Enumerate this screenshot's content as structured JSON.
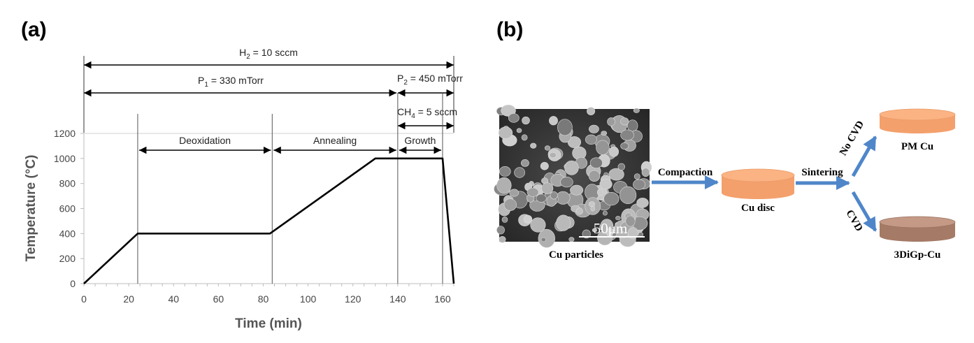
{
  "panel_a": {
    "label": "(a)",
    "h2_label": "H",
    "h2_sub": "2",
    "h2_value": " = 10 sccm",
    "p1_label": "P",
    "p1_sub": "1",
    "p1_value": " = 330 mTorr",
    "p2_label": "P",
    "p2_sub": "2",
    "p2_value": " = 450 mTorr",
    "ch4_label": "CH",
    "ch4_sub": "4",
    "ch4_value": " = 5 sccm",
    "stages": [
      "Deoxidation",
      "Annealing",
      "Growth"
    ]
  },
  "chart_data": {
    "type": "line",
    "xlabel": "Time (min)",
    "ylabel": "Temperature (°C)",
    "xlim": [
      0,
      165
    ],
    "ylim": [
      0,
      1200
    ],
    "xticks": [
      0,
      20,
      40,
      60,
      80,
      100,
      120,
      140,
      160
    ],
    "yticks": [
      0,
      200,
      400,
      600,
      800,
      1000,
      1200
    ],
    "series": [
      {
        "x": [
          0,
          24,
          83,
          130,
          160,
          165
        ],
        "y": [
          0,
          400,
          400,
          1000,
          1000,
          0
        ]
      }
    ],
    "phase_boundaries": [
      24,
      84,
      140,
      160
    ],
    "stage_ranges": [
      [
        24,
        84
      ],
      [
        84,
        140
      ],
      [
        140,
        160
      ]
    ],
    "grid": false,
    "line_color": "#000000"
  },
  "panel_b": {
    "label": "(b)",
    "sem_caption": "Cu particles",
    "scale_bar": "50μm",
    "arrow1_label": "Compaction",
    "disc_label": "Cu disc",
    "arrow2_label": "Sintering",
    "branch_up_label": "No CVD",
    "branch_down_label": "CVD",
    "top_product": "PM Cu",
    "bottom_product": "3DiGp-Cu",
    "colors": {
      "arrow": "#4f86c9",
      "cu_disc_top": "#fbb383",
      "cu_disc_side": "#f4a06d",
      "gp_disc_top": "#c49a86",
      "gp_disc_side": "#a57a66"
    }
  }
}
